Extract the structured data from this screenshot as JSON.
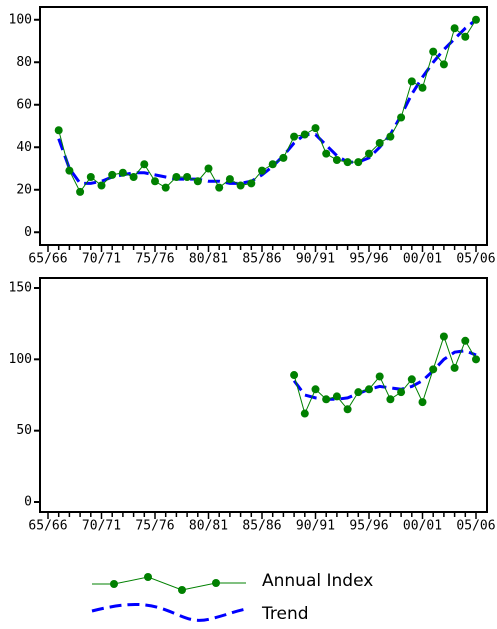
{
  "chart_data": [
    {
      "type": "line",
      "categories": [
        "65/66",
        null,
        null,
        null,
        null,
        "70/71",
        null,
        null,
        null,
        null,
        "75/76",
        null,
        null,
        null,
        null,
        "80/81",
        null,
        null,
        null,
        null,
        "85/86",
        null,
        null,
        null,
        null,
        "90/91",
        null,
        null,
        null,
        null,
        "95/96",
        null,
        null,
        null,
        null,
        "00/01",
        null,
        null,
        null,
        null,
        "05/06"
      ],
      "ylim": [
        -6,
        106
      ],
      "yticks": [
        0,
        20,
        40,
        60,
        80,
        100
      ],
      "series": [
        {
          "name": "Annual Index",
          "color": "#008000",
          "values": [
            null,
            48,
            29,
            19,
            26,
            22,
            27,
            28,
            26,
            32,
            24,
            21,
            26,
            26,
            24,
            30,
            21,
            25,
            22,
            23,
            29,
            32,
            35,
            45,
            46,
            49,
            37,
            34,
            33,
            33,
            37,
            42,
            45,
            54,
            71,
            68,
            85,
            79,
            96,
            92,
            100
          ]
        },
        {
          "name": "Trend",
          "color": "#0000ff",
          "values": [
            null,
            44,
            30,
            23,
            23,
            24,
            26,
            27,
            28,
            28,
            27,
            26,
            25,
            25,
            25,
            24,
            24,
            23,
            23,
            24,
            27,
            31,
            36,
            42,
            46,
            46,
            41,
            36,
            33,
            33,
            35,
            40,
            46,
            55,
            65,
            73,
            80,
            86,
            91,
            96,
            100
          ]
        }
      ]
    },
    {
      "type": "line",
      "categories": [
        "65/66",
        null,
        null,
        null,
        null,
        "70/71",
        null,
        null,
        null,
        null,
        "75/76",
        null,
        null,
        null,
        null,
        "80/81",
        null,
        null,
        null,
        null,
        "85/86",
        null,
        null,
        null,
        null,
        "90/91",
        null,
        null,
        null,
        null,
        "95/96",
        null,
        null,
        null,
        null,
        "00/01",
        null,
        null,
        null,
        null,
        "05/06"
      ],
      "ylim": [
        -7,
        157
      ],
      "yticks": [
        0,
        50,
        100,
        150
      ],
      "series": [
        {
          "name": "Annual Index",
          "color": "#008000",
          "values": [
            null,
            null,
            null,
            null,
            null,
            null,
            null,
            null,
            null,
            null,
            null,
            null,
            null,
            null,
            null,
            null,
            null,
            null,
            null,
            null,
            null,
            null,
            null,
            89,
            62,
            79,
            72,
            74,
            65,
            77,
            79,
            88,
            72,
            77,
            86,
            70,
            93,
            116,
            94,
            113,
            100
          ]
        },
        {
          "name": "Trend",
          "color": "#0000ff",
          "values": [
            null,
            null,
            null,
            null,
            null,
            null,
            null,
            null,
            null,
            null,
            null,
            null,
            null,
            null,
            null,
            null,
            null,
            null,
            null,
            null,
            null,
            null,
            null,
            85,
            75,
            73,
            72,
            72,
            73,
            76,
            79,
            81,
            80,
            79,
            81,
            85,
            92,
            100,
            105,
            106,
            103
          ]
        }
      ]
    }
  ]
}
